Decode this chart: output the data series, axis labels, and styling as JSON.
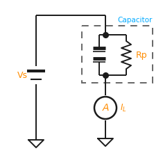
{
  "bg_color": "#ffffff",
  "wire_color": "#1a1a1a",
  "dashed_color": "#666666",
  "vs_color": "#ff8c00",
  "il_color": "#ff8c00",
  "ammeter_color": "#ff8c00",
  "label_color": "#00aaff",
  "vs_label": "Vs",
  "rp_label": "Rp",
  "cap_label": "Capacitor",
  "ammeter_label": "A",
  "il_label": "I_L"
}
